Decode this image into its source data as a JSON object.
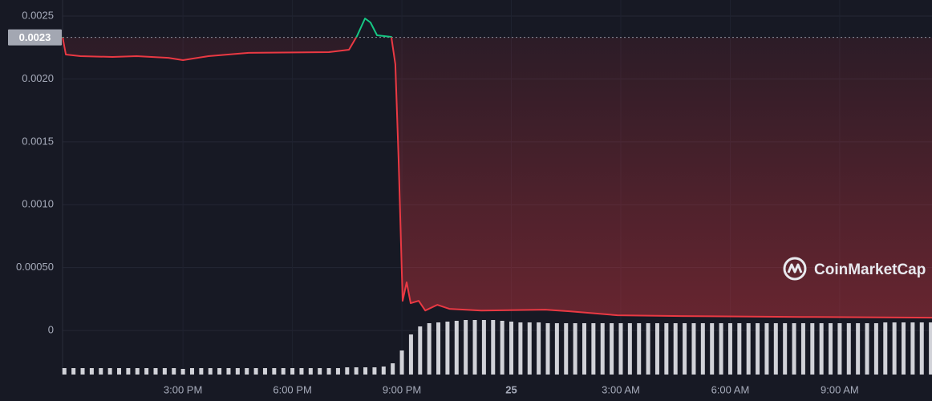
{
  "chart_data": {
    "type": "line",
    "x": [
      11.7,
      11.79,
      12.19,
      13.07,
      13.73,
      14.6,
      15.0,
      15.7,
      16.8,
      19.0,
      19.55,
      19.77,
      19.99,
      20.14,
      20.32,
      20.71,
      20.82,
      20.91,
      21.02,
      21.13,
      21.24,
      21.46,
      21.64,
      21.97,
      22.3,
      23.18,
      24.93,
      25.59,
      26.91,
      28.67,
      31.97,
      35.53
    ],
    "values": [
      0.002334,
      0.002194,
      0.002181,
      0.002175,
      0.002181,
      0.002168,
      0.002149,
      0.002181,
      0.002207,
      0.002213,
      0.002232,
      0.002341,
      0.002481,
      0.002449,
      0.002347,
      0.002334,
      0.002117,
      0.001352,
      0.000236,
      0.000383,
      0.000217,
      0.000236,
      0.000159,
      0.000204,
      0.000172,
      0.000159,
      0.000166,
      0.000153,
      0.000121,
      0.000115,
      0.000108,
      0.000102
    ],
    "color": "#ea3943",
    "color_up": "#16c784",
    "xlim": [
      11.7,
      35.53
    ],
    "ylim": [
      -0.00035,
      0.0026
    ],
    "xticks": [
      {
        "value": 15,
        "label": "3:00 PM"
      },
      {
        "value": 18,
        "label": "6:00 PM"
      },
      {
        "value": 21,
        "label": "9:00 PM"
      },
      {
        "value": 24,
        "label": "25"
      },
      {
        "value": 27,
        "label": "3:00 AM"
      },
      {
        "value": 30,
        "label": "6:00 AM"
      },
      {
        "value": 33,
        "label": "9:00 AM"
      }
    ],
    "yticks": [
      0.0025,
      {
        "value": 0.002,
        "label": "0.0020"
      },
      0.0015,
      {
        "value": 0.001,
        "label": "0.0010"
      },
      {
        "value": 0.0005,
        "label": "0.00050"
      },
      0
    ],
    "reference": {
      "value": 0.00233,
      "label": "0.0023"
    },
    "grid": true,
    "volume": {
      "color": "#e6e7ec",
      "x": [
        11.75,
        12,
        12.25,
        12.5,
        12.75,
        13,
        13.25,
        13.5,
        13.75,
        14,
        14.25,
        14.5,
        14.75,
        15,
        15.25,
        15.5,
        15.75,
        16,
        16.25,
        16.5,
        16.75,
        17,
        17.25,
        17.5,
        17.75,
        18,
        18.25,
        18.5,
        18.75,
        19,
        19.25,
        19.5,
        19.75,
        20,
        20.25,
        20.5,
        20.75,
        21,
        21.25,
        21.5,
        21.75,
        22,
        22.25,
        22.5,
        22.75,
        23,
        23.25,
        23.5,
        23.75,
        24,
        24.25,
        24.5,
        24.75,
        25,
        25.25,
        25.5,
        25.75,
        26,
        26.25,
        26.5,
        26.75,
        27,
        27.25,
        27.5,
        27.75,
        28,
        28.25,
        28.5,
        28.75,
        29,
        29.25,
        29.5,
        29.75,
        30,
        30.25,
        30.5,
        30.75,
        31,
        31.25,
        31.5,
        31.75,
        32,
        32.25,
        32.5,
        32.75,
        33,
        33.25,
        33.5,
        33.75,
        34,
        34.25,
        34.5,
        34.75,
        35,
        35.25,
        35.5
      ],
      "values": [
        8,
        8,
        8,
        8,
        8,
        8,
        8,
        8,
        8,
        8,
        8,
        8,
        8,
        7,
        8,
        8,
        8,
        8,
        8,
        8,
        8,
        8,
        8,
        8,
        8,
        8,
        8,
        8,
        8,
        8,
        8,
        9,
        9,
        9,
        9,
        10,
        14,
        30,
        50,
        60,
        64,
        65,
        66,
        67,
        68,
        68,
        68,
        68,
        67,
        66,
        65,
        65,
        65,
        64,
        64,
        64,
        64,
        64,
        64,
        64,
        64,
        64,
        64,
        64,
        64,
        64,
        64,
        64,
        64,
        64,
        64,
        64,
        64,
        64,
        64,
        64,
        64,
        64,
        64,
        64,
        64,
        64,
        64,
        64,
        64,
        64,
        64,
        64,
        64,
        64,
        65,
        65,
        65,
        65,
        65,
        65
      ]
    },
    "watermark": "CoinMarketCap"
  }
}
